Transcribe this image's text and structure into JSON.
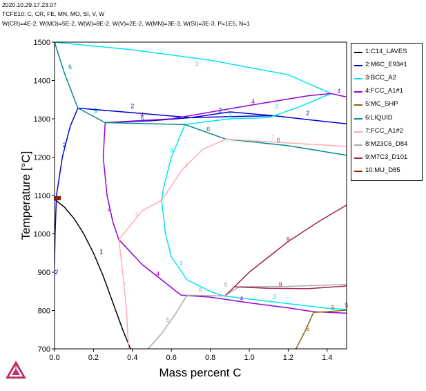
{
  "header": {
    "timestamp": "2020.10.29.17.23.07",
    "database_line": "TCFE10: C, CR, FE, MN, MO, SI, V, W",
    "conditions_line": "W(CR)=4E-2, W(MO)=5E-2, W(W)=8E-2, W(V)=2E-2, W(MN)=3E-3, W(SI)=3E-3, P=1E5, N=1"
  },
  "legend": {
    "items": [
      {
        "label": "1:C14_LAVES",
        "color": "#000000"
      },
      {
        "label": "2:M6C_E93#1",
        "color": "#0000cc"
      },
      {
        "label": "3:BCC_A2",
        "color": "#00e5ee"
      },
      {
        "label": "4:FCC_A1#1",
        "color": "#9400d3"
      },
      {
        "label": "5:MC_SHP",
        "color": "#8b6508"
      },
      {
        "label": "6:LIQUID",
        "color": "#008b8b"
      },
      {
        "label": "7:FCC_A1#2",
        "color": "#ffaab4"
      },
      {
        "label": "8:M23C6_D84",
        "color": "#aaaaaa"
      },
      {
        "label": "9:M7C3_D101",
        "color": "#a0204a"
      },
      {
        "label": "10:MU_D85",
        "color": "#8b2500"
      }
    ]
  },
  "chart_data": {
    "type": "line",
    "title": "",
    "xlabel": "Mass percent C",
    "ylabel": "Temperature [°C]",
    "xlim": [
      0,
      1.5
    ],
    "ylim": [
      700,
      1500
    ],
    "xticks": [
      0,
      0.2,
      0.4,
      0.6,
      0.8,
      1.0,
      1.2,
      1.4
    ],
    "xtick_labels": [
      "0.0",
      "0.2",
      "0.4",
      "0.6",
      "0.8",
      "1.0",
      "1.2",
      "1.4"
    ],
    "yticks": [
      700,
      800,
      900,
      1000,
      1100,
      1200,
      1300,
      1400,
      1500
    ],
    "ytick_labels": [
      "700",
      "800",
      "900",
      "1000",
      "1100",
      "1200",
      "1300",
      "1400",
      "1500"
    ],
    "grid": false,
    "series": [
      {
        "id": 1,
        "color": "#000000",
        "segments": [
          [
            [
              0,
              1090
            ],
            [
              0.05,
              1070
            ],
            [
              0.1,
              1040
            ],
            [
              0.15,
              1000
            ],
            [
              0.2,
              950
            ],
            [
              0.25,
              890
            ],
            [
              0.3,
              820
            ],
            [
              0.35,
              750
            ],
            [
              0.39,
              700
            ]
          ]
        ],
        "labels": [
          {
            "x": 0.24,
            "y": 948,
            "text": "1"
          }
        ]
      },
      {
        "id": 2,
        "color": "#0000cc",
        "segments": [
          [
            [
              0,
              920
            ],
            [
              0.003,
              1000
            ],
            [
              0.01,
              1100
            ],
            [
              0.04,
              1200
            ],
            [
              0.08,
              1280
            ],
            [
              0.12,
              1328
            ]
          ],
          [
            [
              0.12,
              1328
            ],
            [
              0.4,
              1316
            ],
            [
              0.7,
              1303
            ],
            [
              1.0,
              1307
            ],
            [
              1.13,
              1308
            ],
            [
              1.3,
              1298
            ],
            [
              1.5,
              1287
            ]
          ],
          [
            [
              0.26,
              1290
            ],
            [
              0.5,
              1295
            ],
            [
              0.7,
              1303
            ],
            [
              0.9,
              1318
            ],
            [
              1.13,
              1308
            ]
          ]
        ],
        "labels": [
          {
            "x": 0.01,
            "y": 895,
            "text": "2"
          },
          {
            "x": 0.05,
            "y": 1226,
            "text": "2"
          },
          {
            "x": 0.4,
            "y": 1328,
            "text": "2"
          },
          {
            "x": 0.85,
            "y": 1317,
            "text": "2"
          },
          {
            "x": 1.3,
            "y": 1309,
            "text": "2"
          }
        ]
      },
      {
        "id": 3,
        "color": "#00e5ee",
        "segments": [
          [
            [
              0,
              1500
            ],
            [
              0.4,
              1480
            ],
            [
              0.8,
              1453
            ],
            [
              1.2,
              1415
            ],
            [
              1.42,
              1366
            ]
          ],
          [
            [
              0.67,
              1285
            ],
            [
              0.6,
              1200
            ],
            [
              0.56,
              1120
            ],
            [
              0.55,
              1088
            ],
            [
              0.57,
              1000
            ],
            [
              0.6,
              940
            ],
            [
              0.68,
              880
            ],
            [
              0.8,
              850
            ],
            [
              0.87,
              838
            ],
            [
              1.0,
              830
            ],
            [
              1.2,
              818
            ],
            [
              1.4,
              806
            ],
            [
              1.5,
              803
            ]
          ],
          [
            [
              0.67,
              1285
            ],
            [
              0.9,
              1300
            ],
            [
              1.1,
              1303
            ],
            [
              1.25,
              1330
            ],
            [
              1.42,
              1366
            ]
          ]
        ],
        "labels": [
          {
            "x": 0.73,
            "y": 1438,
            "text": "3"
          },
          {
            "x": 0.6,
            "y": 1213,
            "text": "3"
          },
          {
            "x": 0.65,
            "y": 918,
            "text": "3"
          },
          {
            "x": 0.9,
            "y": 1304,
            "text": "3"
          },
          {
            "x": 1.14,
            "y": 1327,
            "text": "3"
          },
          {
            "x": 1.13,
            "y": 830,
            "text": "3"
          }
        ]
      },
      {
        "id": 4,
        "color": "#9400d3",
        "segments": [
          [
            [
              0.26,
              1290
            ],
            [
              0.25,
              1200
            ],
            [
              0.27,
              1100
            ],
            [
              0.3,
              1030
            ],
            [
              0.33,
              985
            ]
          ],
          [
            [
              0.33,
              985
            ],
            [
              0.45,
              920
            ],
            [
              0.55,
              880
            ],
            [
              0.65,
              840
            ],
            [
              0.8,
              835
            ],
            [
              1.0,
              820
            ],
            [
              1.2,
              807
            ],
            [
              1.33,
              797
            ],
            [
              1.5,
              793
            ]
          ],
          [
            [
              0.26,
              1290
            ],
            [
              0.6,
              1300
            ],
            [
              1.0,
              1335
            ],
            [
              1.3,
              1360
            ],
            [
              1.42,
              1366
            ],
            [
              1.5,
              1357
            ]
          ]
        ],
        "labels": [
          {
            "x": 0.28,
            "y": 1058,
            "text": "4"
          },
          {
            "x": 0.53,
            "y": 890,
            "text": "4"
          },
          {
            "x": 0.45,
            "y": 1305,
            "text": "4"
          },
          {
            "x": 1.02,
            "y": 1340,
            "text": "4"
          },
          {
            "x": 1.46,
            "y": 1367,
            "text": "4"
          },
          {
            "x": 0.96,
            "y": 826,
            "text": "4"
          }
        ]
      },
      {
        "id": 5,
        "color": "#8b6508",
        "segments": [
          [
            [
              1.33,
              795
            ],
            [
              1.4,
              797
            ],
            [
              1.5,
              801
            ]
          ],
          [
            [
              1.33,
              795
            ],
            [
              1.29,
              750
            ],
            [
              1.24,
              700
            ]
          ]
        ],
        "labels": [
          {
            "x": 1.43,
            "y": 802,
            "text": "5"
          },
          {
            "x": 1.5,
            "y": 808,
            "text": "5"
          },
          {
            "x": 1.3,
            "y": 747,
            "text": "5"
          }
        ]
      },
      {
        "id": 6,
        "color": "#008b8b",
        "segments": [
          [
            [
              0,
              1500
            ],
            [
              0.05,
              1420
            ],
            [
              0.12,
              1328
            ]
          ],
          [
            [
              0.26,
              1290
            ],
            [
              0.67,
              1285
            ],
            [
              0.88,
              1247
            ],
            [
              1.2,
              1230
            ],
            [
              1.5,
              1205
            ]
          ],
          [
            [
              0.12,
              1328
            ],
            [
              0.26,
              1290
            ]
          ]
        ],
        "labels": [
          {
            "x": 0.08,
            "y": 1430,
            "text": "6"
          },
          {
            "x": 0.21,
            "y": 1315,
            "text": "6"
          },
          {
            "x": 0.45,
            "y": 1296,
            "text": "6"
          },
          {
            "x": 0.79,
            "y": 1268,
            "text": "6"
          },
          {
            "x": 1.15,
            "y": 1239,
            "text": "6"
          }
        ]
      },
      {
        "id": 7,
        "color": "#ffaab4",
        "segments": [
          [
            [
              0.33,
              985
            ],
            [
              0.45,
              1060
            ],
            [
              0.55,
              1088
            ],
            [
              0.66,
              1170
            ],
            [
              0.76,
              1220
            ],
            [
              0.88,
              1247
            ],
            [
              1.1,
              1240
            ],
            [
              1.5,
              1228
            ]
          ],
          [
            [
              0.33,
              985
            ],
            [
              0.35,
              900
            ],
            [
              0.37,
              800
            ],
            [
              0.38,
              700
            ]
          ]
        ],
        "labels": [
          {
            "x": 0.42,
            "y": 1044,
            "text": "7"
          },
          {
            "x": 0.68,
            "y": 1172,
            "text": "7"
          },
          {
            "x": 0.36,
            "y": 862,
            "text": "7"
          },
          {
            "x": 1.12,
            "y": 1245,
            "text": "7"
          }
        ]
      },
      {
        "id": 8,
        "color": "#aaaaaa",
        "segments": [
          [
            [
              0.48,
              700
            ],
            [
              0.55,
              740
            ],
            [
              0.62,
              790
            ],
            [
              0.68,
              840
            ],
            [
              0.87,
              838
            ],
            [
              0.95,
              862
            ],
            [
              1.2,
              863
            ],
            [
              1.5,
              868
            ]
          ]
        ],
        "labels": [
          {
            "x": 0.58,
            "y": 770,
            "text": "8"
          },
          {
            "x": 0.75,
            "y": 848,
            "text": "8"
          },
          {
            "x": 0.88,
            "y": 862,
            "text": "8"
          }
        ]
      },
      {
        "id": 9,
        "color": "#a0204a",
        "segments": [
          [
            [
              0.88,
              840
            ],
            [
              1.0,
              900
            ],
            [
              1.2,
              980
            ],
            [
              1.35,
              1030
            ],
            [
              1.5,
              1075
            ]
          ],
          [
            [
              0.92,
              862
            ],
            [
              1.1,
              858
            ],
            [
              1.3,
              857
            ],
            [
              1.5,
              864
            ]
          ]
        ],
        "labels": [
          {
            "x": 1.2,
            "y": 980,
            "text": "9"
          },
          {
            "x": 1.16,
            "y": 863,
            "text": "9"
          }
        ]
      },
      {
        "id": 10,
        "color": "#8b2500",
        "segments": [],
        "marker": {
          "x": 0.015,
          "y": 1093
        }
      }
    ]
  }
}
